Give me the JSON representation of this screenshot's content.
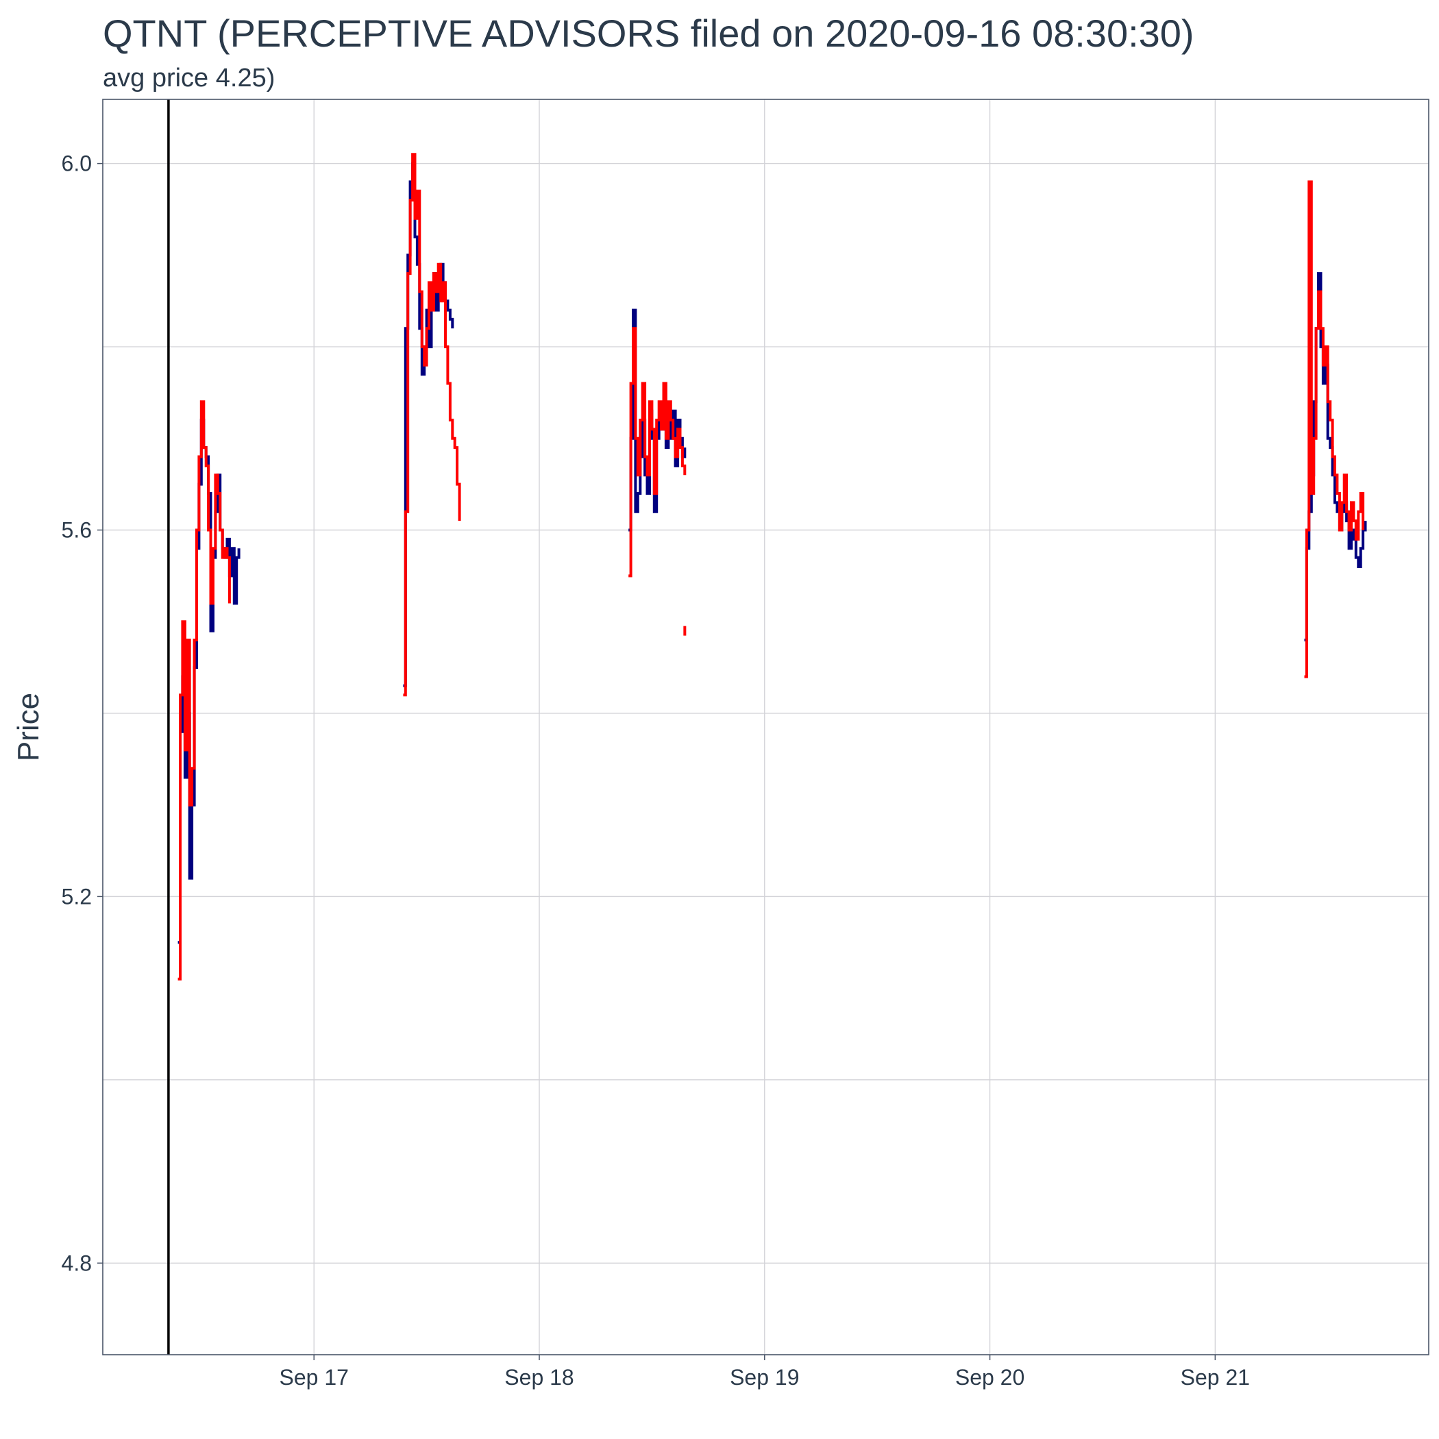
{
  "chart_data": {
    "type": "line",
    "title": "QTNT (PERCEPTIVE ADVISORS filed on 2020-09-16 08:30:30)",
    "subtitle": "avg price 4.25)",
    "xlabel": "",
    "ylabel": "Price",
    "xlim": [
      "2020-09-16 01:30",
      "2020-09-21 22:45"
    ],
    "ylim": [
      4.7,
      6.07
    ],
    "y_ticks": [
      4.8,
      5.2,
      5.6,
      6.0
    ],
    "x_ticks": [
      {
        "date": "2020-09-17",
        "label": "Sep 17"
      },
      {
        "date": "2020-09-18",
        "label": "Sep 18"
      },
      {
        "date": "2020-09-19",
        "label": "Sep 19"
      },
      {
        "date": "2020-09-20",
        "label": "Sep 20"
      },
      {
        "date": "2020-09-21",
        "label": "Sep 21"
      }
    ],
    "grid": true,
    "legend": "none",
    "filing_marker": {
      "time": "2020-09-16 08:30",
      "color": "#000000"
    },
    "series": [
      {
        "color": "#00007f",
        "x": [
          "2020-09-16 09:30",
          "2020-09-16 09:45",
          "2020-09-16 10:00",
          "2020-09-16 10:15",
          "2020-09-16 10:30",
          "2020-09-16 10:45",
          "2020-09-16 11:00",
          "2020-09-16 11:15",
          "2020-09-16 11:30",
          "2020-09-16 11:45",
          "2020-09-16 12:00",
          "2020-09-16 12:15",
          "2020-09-16 12:30",
          "2020-09-16 12:45",
          "2020-09-16 13:00",
          "2020-09-16 13:15",
          "2020-09-16 13:30",
          "2020-09-16 13:45",
          "2020-09-16 14:00",
          "2020-09-16 14:15",
          "2020-09-16 14:30",
          "2020-09-16 14:45",
          "2020-09-16 15:00",
          "2020-09-16 15:15",
          "2020-09-16 15:30",
          "2020-09-16 15:45",
          "2020-09-16 16:00",
          null,
          "2020-09-17 09:30",
          "2020-09-17 09:45",
          "2020-09-17 10:00",
          "2020-09-17 10:15",
          "2020-09-17 10:30",
          "2020-09-17 10:45",
          "2020-09-17 11:00",
          "2020-09-17 11:15",
          "2020-09-17 11:30",
          "2020-09-17 11:45",
          "2020-09-17 12:00",
          "2020-09-17 12:15",
          "2020-09-17 12:30",
          "2020-09-17 12:45",
          "2020-09-17 13:00",
          "2020-09-17 13:15",
          "2020-09-17 13:30",
          "2020-09-17 13:45",
          "2020-09-17 14:00",
          "2020-09-17 14:15",
          "2020-09-17 14:30",
          "2020-09-17 14:45",
          null,
          "2020-09-18 09:30",
          "2020-09-18 09:45",
          "2020-09-18 10:00",
          "2020-09-18 10:15",
          "2020-09-18 10:30",
          "2020-09-18 10:45",
          "2020-09-18 11:00",
          "2020-09-18 11:15",
          "2020-09-18 11:30",
          "2020-09-18 11:45",
          "2020-09-18 12:00",
          "2020-09-18 12:15",
          "2020-09-18 12:30",
          "2020-09-18 12:45",
          "2020-09-18 13:00",
          "2020-09-18 13:15",
          "2020-09-18 13:30",
          "2020-09-18 13:45",
          "2020-09-18 14:00",
          "2020-09-18 14:15",
          "2020-09-18 14:30",
          "2020-09-18 14:45",
          "2020-09-18 15:00",
          "2020-09-18 15:15",
          "2020-09-18 15:30",
          null,
          "2020-09-21 09:30",
          "2020-09-21 09:45",
          "2020-09-21 10:00",
          "2020-09-21 10:15",
          "2020-09-21 10:30",
          "2020-09-21 10:45",
          "2020-09-21 11:00",
          "2020-09-21 11:15",
          "2020-09-21 11:30",
          "2020-09-21 11:45",
          "2020-09-21 12:00",
          "2020-09-21 12:15",
          "2020-09-21 12:30",
          "2020-09-21 12:45",
          "2020-09-21 13:00",
          "2020-09-21 13:15",
          "2020-09-21 13:30",
          "2020-09-21 13:45",
          "2020-09-21 14:00",
          "2020-09-21 14:15",
          "2020-09-21 14:30",
          "2020-09-21 14:45",
          "2020-09-21 15:00",
          "2020-09-21 15:15",
          "2020-09-21 15:30",
          "2020-09-21 15:45",
          "2020-09-21 16:00"
        ],
        "y": [
          5.15,
          5.38,
          5.44,
          5.33,
          5.4,
          5.22,
          5.3,
          5.45,
          5.58,
          5.65,
          5.72,
          5.69,
          5.68,
          5.64,
          5.49,
          5.57,
          5.62,
          5.66,
          5.6,
          5.58,
          5.57,
          5.59,
          5.55,
          5.58,
          5.52,
          5.57,
          5.58,
          null,
          5.43,
          5.82,
          5.9,
          5.98,
          6.0,
          5.92,
          5.89,
          5.82,
          5.77,
          5.8,
          5.84,
          5.8,
          5.86,
          5.88,
          5.84,
          5.86,
          5.89,
          5.87,
          5.85,
          5.84,
          5.83,
          5.82,
          null,
          5.6,
          5.7,
          5.84,
          5.62,
          5.64,
          5.68,
          5.72,
          5.66,
          5.64,
          5.73,
          5.7,
          5.62,
          5.7,
          5.72,
          5.71,
          5.73,
          5.69,
          5.72,
          5.7,
          5.73,
          5.67,
          5.72,
          5.7,
          5.68,
          5.69,
          null,
          5.48,
          5.58,
          5.62,
          5.66,
          5.74,
          5.82,
          5.88,
          5.8,
          5.76,
          5.78,
          5.7,
          5.69,
          5.66,
          5.63,
          5.62,
          5.6,
          5.62,
          5.63,
          5.61,
          5.58,
          5.6,
          5.59,
          5.57,
          5.56,
          5.58,
          5.6,
          5.61
        ]
      },
      {
        "color": "#ff0000",
        "x": [
          "2020-09-16 09:30",
          "2020-09-16 09:45",
          "2020-09-16 10:00",
          "2020-09-16 10:15",
          "2020-09-16 10:30",
          "2020-09-16 10:45",
          "2020-09-16 11:00",
          "2020-09-16 11:15",
          "2020-09-16 11:30",
          "2020-09-16 11:45",
          "2020-09-16 12:00",
          "2020-09-16 12:15",
          "2020-09-16 12:30",
          "2020-09-16 12:45",
          "2020-09-16 13:00",
          "2020-09-16 13:15",
          "2020-09-16 13:30",
          "2020-09-16 13:45",
          "2020-09-16 14:00",
          "2020-09-16 14:15",
          "2020-09-16 14:30",
          "2020-09-16 14:45",
          "2020-09-16 15:00",
          null,
          "2020-09-17 09:30",
          "2020-09-17 09:45",
          "2020-09-17 10:00",
          "2020-09-17 10:15",
          "2020-09-17 10:30",
          "2020-09-17 10:45",
          "2020-09-17 11:00",
          "2020-09-17 11:15",
          "2020-09-17 11:30",
          "2020-09-17 11:45",
          "2020-09-17 12:00",
          "2020-09-17 12:15",
          "2020-09-17 12:30",
          "2020-09-17 12:45",
          "2020-09-17 13:00",
          "2020-09-17 13:15",
          "2020-09-17 13:30",
          "2020-09-17 13:45",
          "2020-09-17 14:00",
          "2020-09-17 14:15",
          "2020-09-17 14:30",
          "2020-09-17 14:45",
          "2020-09-17 15:00",
          "2020-09-17 15:15",
          "2020-09-17 15:30",
          null,
          "2020-09-18 09:30",
          "2020-09-18 09:45",
          "2020-09-18 10:00",
          "2020-09-18 10:15",
          "2020-09-18 10:30",
          "2020-09-18 10:45",
          "2020-09-18 11:00",
          "2020-09-18 11:15",
          "2020-09-18 11:30",
          "2020-09-18 11:45",
          "2020-09-18 12:00",
          "2020-09-18 12:15",
          "2020-09-18 12:30",
          "2020-09-18 12:45",
          "2020-09-18 13:00",
          "2020-09-18 13:15",
          "2020-09-18 13:30",
          "2020-09-18 13:45",
          "2020-09-18 14:00",
          "2020-09-18 14:15",
          "2020-09-18 14:30",
          "2020-09-18 14:45",
          "2020-09-18 15:00",
          "2020-09-18 15:15",
          "2020-09-18 15:30",
          null,
          "2020-09-21 09:30",
          "2020-09-21 09:45",
          "2020-09-21 10:00",
          "2020-09-21 10:15",
          "2020-09-21 10:30",
          "2020-09-21 10:45",
          "2020-09-21 11:00",
          "2020-09-21 11:15",
          "2020-09-21 11:30",
          "2020-09-21 11:45",
          "2020-09-21 12:00",
          "2020-09-21 12:15",
          "2020-09-21 12:30",
          "2020-09-21 12:45",
          "2020-09-21 13:00",
          "2020-09-21 13:15",
          "2020-09-21 13:30",
          "2020-09-21 13:45",
          "2020-09-21 14:00",
          "2020-09-21 14:15",
          "2020-09-21 14:30",
          "2020-09-21 14:45",
          "2020-09-21 15:00",
          "2020-09-21 15:15",
          "2020-09-21 15:30",
          "2020-09-21 15:45"
        ],
        "y": [
          5.11,
          5.42,
          5.5,
          5.36,
          5.48,
          5.3,
          5.34,
          5.48,
          5.6,
          5.68,
          5.74,
          5.69,
          5.67,
          5.6,
          5.52,
          5.58,
          5.66,
          5.64,
          5.6,
          5.57,
          5.58,
          5.57,
          5.52,
          null,
          5.42,
          5.62,
          5.88,
          5.96,
          6.01,
          5.94,
          5.97,
          5.86,
          5.8,
          5.78,
          5.82,
          5.87,
          5.84,
          5.88,
          5.86,
          5.89,
          5.85,
          5.87,
          5.8,
          5.76,
          5.72,
          5.7,
          5.69,
          5.65,
          5.61,
          null,
          5.55,
          5.76,
          5.82,
          5.7,
          5.66,
          5.72,
          5.76,
          5.68,
          5.66,
          5.74,
          5.71,
          5.64,
          5.72,
          5.74,
          5.71,
          5.76,
          5.7,
          5.74,
          5.72,
          5.7,
          5.68,
          5.71,
          5.69,
          5.67,
          5.66,
          null,
          5.44,
          5.6,
          5.98,
          5.64,
          5.7,
          5.82,
          5.86,
          5.82,
          5.78,
          5.8,
          5.74,
          5.72,
          5.68,
          5.66,
          5.64,
          5.6,
          5.63,
          5.66,
          5.62,
          5.6,
          5.63,
          5.61,
          5.59,
          5.62,
          5.64,
          5.6
        ]
      }
    ],
    "extra_marks": [
      {
        "time": "2020-09-18 15:30",
        "value": 5.49,
        "color": "#ff0000"
      }
    ]
  }
}
